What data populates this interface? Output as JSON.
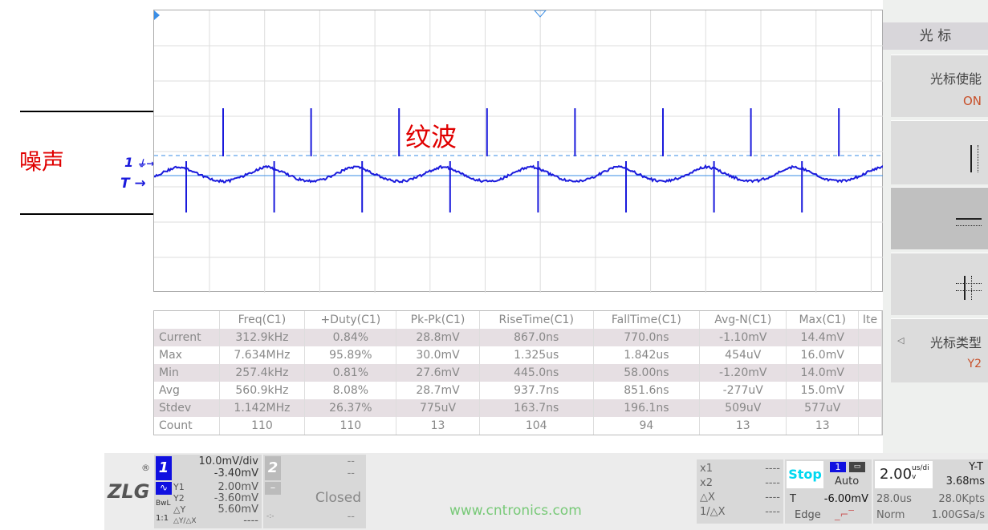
{
  "annotations": {
    "noise": "噪声",
    "ripple": "纹波"
  },
  "markers": {
    "ch1": "1",
    "trigger": "T"
  },
  "measurements": {
    "columns": [
      "",
      "Freq(C1)",
      "+Duty(C1)",
      "Pk-Pk(C1)",
      "RiseTime(C1)",
      "FallTime(C1)",
      "Avg-N(C1)",
      "Max(C1)",
      "Ite"
    ],
    "rows": [
      [
        "Current",
        "312.9kHz",
        "0.84%",
        "28.8mV",
        "867.0ns",
        "770.0ns",
        "-1.10mV",
        "14.4mV",
        ""
      ],
      [
        "Max",
        "7.634MHz",
        "95.89%",
        "30.0mV",
        "1.325us",
        "1.842us",
        "454uV",
        "16.0mV",
        ""
      ],
      [
        "Min",
        "257.4kHz",
        "0.81%",
        "27.6mV",
        "445.0ns",
        "58.00ns",
        "-1.20mV",
        "14.0mV",
        ""
      ],
      [
        "Avg",
        "560.9kHz",
        "8.08%",
        "28.7mV",
        "937.7ns",
        "851.6ns",
        "-277uV",
        "15.0mV",
        ""
      ],
      [
        "Stdev",
        "1.142MHz",
        "26.37%",
        "775uV",
        "163.7ns",
        "196.1ns",
        "509uV",
        "577uV",
        ""
      ],
      [
        "Count",
        "110",
        "110",
        "13",
        "104",
        "94",
        "13",
        "13",
        ""
      ]
    ]
  },
  "side_menu": {
    "title": "光 标",
    "items": [
      {
        "label": "光标使能",
        "value": "ON"
      },
      {
        "label": "",
        "icon": "vertical-cursors-icon"
      },
      {
        "label": "",
        "icon": "horizontal-cursors-icon",
        "selected": true
      },
      {
        "label": "",
        "icon": "cross-cursors-icon"
      },
      {
        "label": "光标类型",
        "value": "Y2"
      }
    ]
  },
  "status": {
    "logo": "ZLG",
    "ch1": {
      "num": "1",
      "scale": "10.0mV/div",
      "offset": "-3.40mV",
      "bw": "BwL",
      "probe": "1:1",
      "y1_label": "Y1",
      "y1": "2.00mV",
      "y2_label": "Y2",
      "y2": "-3.60mV",
      "dy_label": "△Y",
      "dy": "5.60mV",
      "dydx_label": "△Y/△X",
      "dydx": "----"
    },
    "ch2": {
      "num": "2",
      "scale": "--",
      "offset": "--",
      "state": "Closed",
      "minus": "–",
      "extra": "--",
      "coupling": "-:-"
    },
    "xcursor": {
      "x1_label": "x1",
      "x1": "----",
      "x2_label": "x2",
      "x2": "----",
      "dx_label": "△X",
      "dx": "----",
      "inv_label": "1/△X",
      "inv": "----"
    },
    "trigger": {
      "run": "Stop",
      "source": "1",
      "mode": "Auto",
      "level_label": "T",
      "level": "-6.00mV",
      "type": "Edge"
    },
    "timebase": {
      "value": "2.00",
      "unit": "us/div",
      "mode": "Y-T",
      "delay": "3.68ms",
      "record": "28.0us",
      "points": "28.0Kpts",
      "acq": "Norm",
      "rate": "1.00GSa/s"
    },
    "watermark": "www.cntronics.com"
  },
  "colors": {
    "trace": "#1a1adc",
    "accent": "#3a8ee6",
    "stop": "#00d8f0",
    "annotation": "#e00000"
  }
}
